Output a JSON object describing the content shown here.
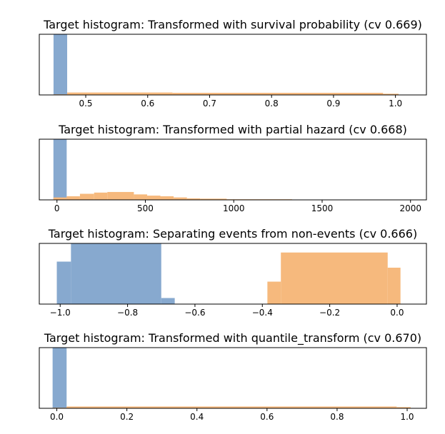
{
  "chart_data": [
    {
      "type": "histogram",
      "title": "Target histogram: Transformed with survival probability (cv 0.669)",
      "xlim": [
        0.425,
        1.05
      ],
      "ylim": [
        0,
        1
      ],
      "grid": false,
      "legend": "none",
      "xticks": [
        0.5,
        0.6,
        0.7,
        0.8,
        0.9,
        1.0
      ],
      "xtick_labels": [
        "0.5",
        "0.6",
        "0.7",
        "0.8",
        "0.9",
        "1.0"
      ],
      "series": [
        {
          "color": "#87a9cf",
          "bins": [
            {
              "x0": 0.448,
              "x1": 0.47,
              "h": 1.0
            }
          ]
        },
        {
          "color": "#f6b97d",
          "bins": [
            {
              "x0": 0.448,
              "x1": 0.47,
              "h": 0.01
            },
            {
              "x0": 0.47,
              "x1": 0.64,
              "h": 0.04
            },
            {
              "x0": 0.64,
              "x1": 0.98,
              "h": 0.035
            },
            {
              "x0": 0.98,
              "x1": 1.005,
              "h": 0.02
            }
          ]
        }
      ]
    },
    {
      "type": "histogram",
      "title": "Target histogram: Transformed with partial hazard (cv 0.668)",
      "xlim": [
        -100,
        2090
      ],
      "ylim": [
        0,
        1
      ],
      "grid": false,
      "legend": "none",
      "xticks": [
        0,
        500,
        1000,
        1500,
        2000
      ],
      "xtick_labels": [
        "0",
        "500",
        "1000",
        "1500",
        "2000"
      ],
      "series": [
        {
          "color": "#87a9cf",
          "bins": [
            {
              "x0": -20,
              "x1": 55,
              "h": 1.0
            }
          ]
        },
        {
          "color": "#f6b97d",
          "bins": [
            {
              "x0": -20,
              "x1": 55,
              "h": 0.04
            },
            {
              "x0": 55,
              "x1": 130,
              "h": 0.06
            },
            {
              "x0": 130,
              "x1": 210,
              "h": 0.1
            },
            {
              "x0": 210,
              "x1": 285,
              "h": 0.12
            },
            {
              "x0": 285,
              "x1": 435,
              "h": 0.13
            },
            {
              "x0": 435,
              "x1": 510,
              "h": 0.09
            },
            {
              "x0": 510,
              "x1": 585,
              "h": 0.07
            },
            {
              "x0": 585,
              "x1": 660,
              "h": 0.06
            },
            {
              "x0": 660,
              "x1": 735,
              "h": 0.04
            },
            {
              "x0": 735,
              "x1": 810,
              "h": 0.025
            },
            {
              "x0": 810,
              "x1": 960,
              "h": 0.02
            },
            {
              "x0": 960,
              "x1": 1330,
              "h": 0.01
            },
            {
              "x0": 1330,
              "x1": 1910,
              "h": 0.004
            }
          ]
        }
      ]
    },
    {
      "type": "histogram",
      "title": "Target histogram: Separating events from non-events (cv 0.666)",
      "xlim": [
        -1.062,
        0.087
      ],
      "ylim": [
        0,
        1
      ],
      "grid": false,
      "legend": "none",
      "xticks": [
        -1.0,
        -0.8,
        -0.6,
        -0.4,
        -0.2,
        0.0
      ],
      "xtick_labels": [
        "−1.0",
        "−0.8",
        "−0.6",
        "−0.4",
        "−0.2",
        "0.0"
      ],
      "series": [
        {
          "color": "#87a9cf",
          "bins": [
            {
              "x0": -1.01,
              "x1": -0.968,
              "h": 0.7
            },
            {
              "x0": -0.968,
              "x1": -0.7,
              "h": 1.0
            },
            {
              "x0": -0.7,
              "x1": -0.66,
              "h": 0.1
            }
          ]
        },
        {
          "color": "#f6b97d",
          "bins": [
            {
              "x0": -0.385,
              "x1": -0.345,
              "h": 0.37
            },
            {
              "x0": -0.345,
              "x1": -0.028,
              "h": 0.85
            },
            {
              "x0": -0.028,
              "x1": 0.01,
              "h": 0.6
            }
          ]
        }
      ]
    },
    {
      "type": "histogram",
      "title": "Target histogram: Transformed with quantile_transform (cv 0.670)",
      "xlim": [
        -0.05,
        1.055
      ],
      "ylim": [
        0,
        1
      ],
      "grid": false,
      "legend": "none",
      "xticks": [
        0.0,
        0.2,
        0.4,
        0.6,
        0.8,
        1.0
      ],
      "xtick_labels": [
        "0.0",
        "0.2",
        "0.4",
        "0.6",
        "0.8",
        "1.0"
      ],
      "series": [
        {
          "color": "#87a9cf",
          "bins": [
            {
              "x0": -0.012,
              "x1": 0.028,
              "h": 1.0
            }
          ]
        },
        {
          "color": "#f6b97d",
          "bins": [
            {
              "x0": -0.012,
              "x1": 0.028,
              "h": 0.01
            },
            {
              "x0": 0.028,
              "x1": 0.97,
              "h": 0.03
            },
            {
              "x0": 0.97,
              "x1": 1.01,
              "h": 0.02
            }
          ]
        }
      ]
    }
  ]
}
